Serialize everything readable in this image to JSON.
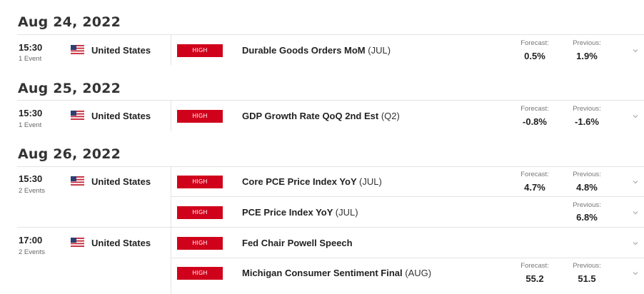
{
  "days": [
    {
      "date": "Aug 24, 2022",
      "groups": [
        {
          "time": "15:30",
          "event_count": "1 Event",
          "country": "United States",
          "events": [
            {
              "impact": "HIGH",
              "title": "Durable Goods Orders MoM",
              "period": "(JUL)",
              "forecast_label": "Forecast:",
              "forecast": "0.5%",
              "previous_label": "Previous:",
              "previous": "1.9%"
            }
          ]
        }
      ]
    },
    {
      "date": "Aug 25, 2022",
      "groups": [
        {
          "time": "15:30",
          "event_count": "1 Event",
          "country": "United States",
          "events": [
            {
              "impact": "HIGH",
              "title": "GDP Growth Rate QoQ 2nd Est",
              "period": "(Q2)",
              "forecast_label": "Forecast:",
              "forecast": "-0.8%",
              "previous_label": "Previous:",
              "previous": "-1.6%"
            }
          ]
        }
      ]
    },
    {
      "date": "Aug 26, 2022",
      "groups": [
        {
          "time": "15:30",
          "event_count": "2 Events",
          "country": "United States",
          "events": [
            {
              "impact": "HIGH",
              "title": "Core PCE Price Index YoY",
              "period": "(JUL)",
              "forecast_label": "Forecast:",
              "forecast": "4.7%",
              "previous_label": "Previous:",
              "previous": "4.8%"
            },
            {
              "impact": "HIGH",
              "title": "PCE Price Index YoY",
              "period": "(JUL)",
              "previous_label": "Previous:",
              "previous": "6.8%"
            }
          ]
        },
        {
          "time": "17:00",
          "event_count": "2 Events",
          "country": "United States",
          "events": [
            {
              "impact": "HIGH",
              "title": "Fed Chair Powell Speech",
              "period": ""
            },
            {
              "impact": "HIGH",
              "title": "Michigan Consumer Sentiment Final",
              "period": "(AUG)",
              "forecast_label": "Forecast:",
              "forecast": "55.2",
              "previous_label": "Previous:",
              "previous": "51.5"
            }
          ]
        }
      ]
    }
  ],
  "colors": {
    "impact_high": "#d0021b",
    "separator": "#e3e3e3"
  },
  "icons": {
    "flag": "us-flag-icon",
    "expand": "chevron-down-icon"
  }
}
